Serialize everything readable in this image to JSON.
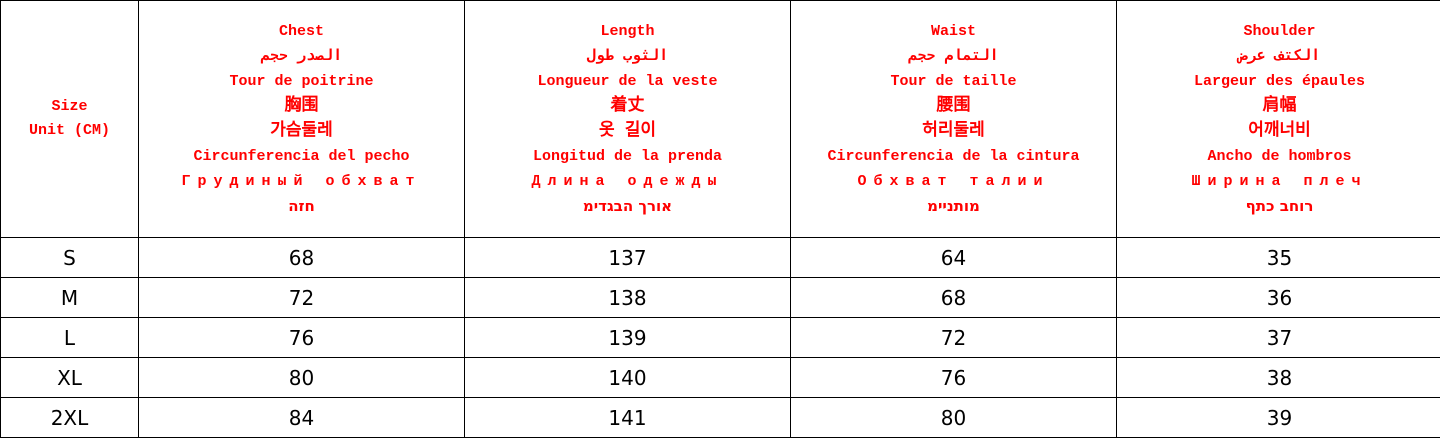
{
  "size_header": [
    "Size",
    "Unit (CM)"
  ],
  "columns": [
    {
      "lines": [
        "Chest",
        "الصدر حجم",
        "Tour de poitrine",
        "胸围",
        "가슴둘레",
        "Circunferencia del pecho",
        "Грудиный обхват",
        "הזח"
      ]
    },
    {
      "lines": [
        "Length",
        "الثوب طول",
        "Longueur de la veste",
        "着丈",
        "옷 길이",
        "Longitud de la prenda",
        "Длина одежды",
        "מידגבה ךרוא"
      ]
    },
    {
      "lines": [
        "Waist",
        "التمام حجم",
        "Tour de taille",
        "腰围",
        "허리둘레",
        "Circunferencia de la cintura",
        "Обхват талии",
        "מיינתומ"
      ]
    },
    {
      "lines": [
        "Shoulder",
        "الكتف عرض",
        "Largeur des épaules",
        "肩幅",
        "어깨너비",
        "Ancho de hombros",
        "Ширина плеч",
        "ףתכ בחור"
      ]
    }
  ],
  "rows": [
    [
      "S",
      "68",
      "137",
      "64",
      "35"
    ],
    [
      "M",
      "72",
      "138",
      "68",
      "36"
    ],
    [
      "L",
      "76",
      "139",
      "72",
      "37"
    ],
    [
      "XL",
      "80",
      "140",
      "76",
      "38"
    ],
    [
      "2XL",
      "84",
      "141",
      "80",
      "39"
    ]
  ],
  "colors": {
    "header_text": "#ff0000",
    "body_text": "#000000",
    "border": "#000000"
  }
}
